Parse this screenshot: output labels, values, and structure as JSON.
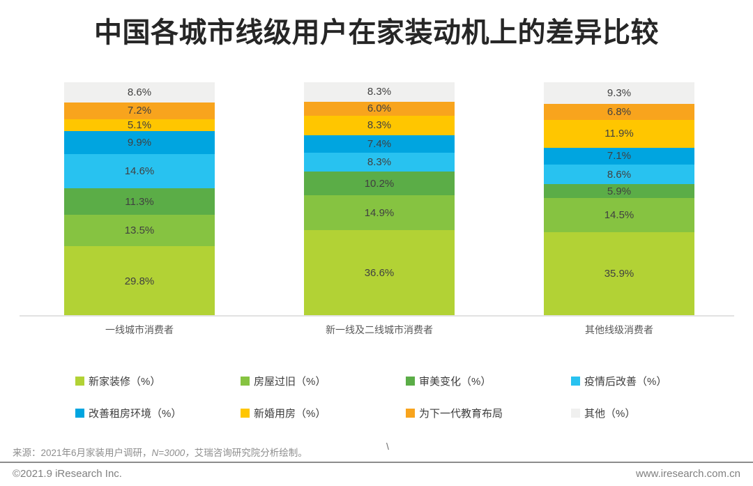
{
  "title": "中国各城市线级用户在家装动机上的差异比较",
  "chart_data": {
    "type": "bar",
    "stacked": true,
    "orientation": "vertical",
    "grid": false,
    "ylim": [
      0,
      100
    ],
    "value_suffix": "%",
    "legend_position": "bottom",
    "categories": [
      "一线城市消费者",
      "新一线及二线城市消费者",
      "其他线级消费者"
    ],
    "series": [
      {
        "name": "新家装修（%）",
        "color": "#b2d235",
        "values": [
          29.8,
          36.6,
          35.9
        ]
      },
      {
        "name": "房屋过旧（%）",
        "color": "#86c341",
        "values": [
          13.5,
          14.9,
          14.5
        ]
      },
      {
        "name": "审美变化（%）",
        "color": "#5bad47",
        "values": [
          11.3,
          10.2,
          5.9
        ]
      },
      {
        "name": "疫情后改善（%）",
        "color": "#28c2f0",
        "values": [
          14.6,
          8.3,
          8.6
        ]
      },
      {
        "name": "改善租房环境（%）",
        "color": "#00a5e0",
        "values": [
          9.9,
          7.4,
          7.1
        ]
      },
      {
        "name": "新婚用房（%）",
        "color": "#ffc600",
        "values": [
          5.1,
          8.3,
          11.9
        ]
      },
      {
        "name": "为下一代教育布局",
        "color": "#f8a41d",
        "values": [
          7.2,
          6.0,
          6.8
        ]
      },
      {
        "name": "其他（%）",
        "color": "#f0f0ef",
        "values": [
          8.6,
          8.3,
          9.3
        ]
      }
    ]
  },
  "source": {
    "prefix": "来源：2021年6月家装用户调研，",
    "italic": "N=3000，",
    "suffix": "艾瑞咨询研究院分析绘制。"
  },
  "stray_mark": "\\",
  "footer": {
    "copyright": "©2021.9 iResearch Inc.",
    "website": "www.iresearch.com.cn"
  }
}
